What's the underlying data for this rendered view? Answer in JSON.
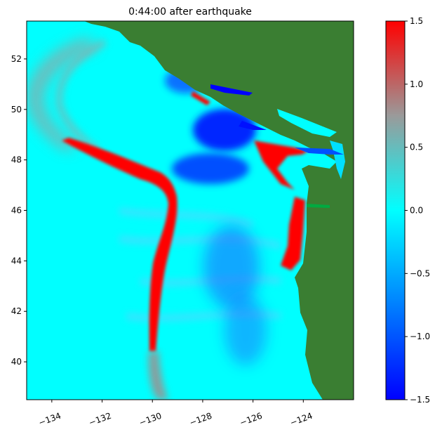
{
  "title": "0:44:00 after earthquake",
  "map": {
    "x_ticks": [
      "−134",
      "−132",
      "−130",
      "−128",
      "−126",
      "−124"
    ],
    "y_ticks": [
      "40",
      "42",
      "44",
      "46",
      "48",
      "50",
      "52"
    ],
    "x_range": [
      -135.0,
      -122.0
    ],
    "y_range": [
      38.5,
      53.5
    ],
    "x_tick_values": [
      -134,
      -132,
      -130,
      -128,
      -126,
      -124
    ],
    "y_tick_values": [
      40,
      42,
      44,
      46,
      48,
      50,
      52
    ]
  },
  "colorbar": {
    "ticks": [
      "1.5",
      "1.0",
      "0.5",
      "0.0",
      "−0.5",
      "−1.0",
      "−1.5"
    ],
    "values": [
      1.5,
      1.0,
      0.5,
      0.0,
      -0.5,
      -1.0,
      -1.5
    ],
    "range": [
      -1.5,
      1.5
    ],
    "colors": [
      "#0000ff",
      "#00ffff",
      "#ff0000"
    ]
  },
  "colors": {
    "ocean_base": "#00ffff",
    "land": "#3a7e32",
    "wave_red": "#ff0000",
    "wave_gray": "#a39a9a",
    "trough_blue": "#0028ff"
  }
}
